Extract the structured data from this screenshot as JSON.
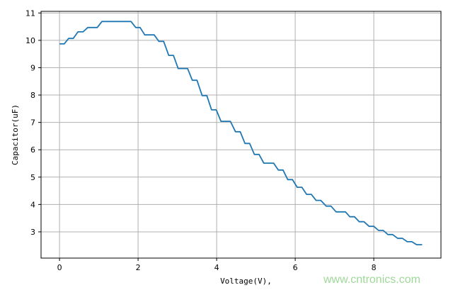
{
  "chart_data": {
    "type": "line",
    "title": "",
    "xlabel": "Voltage(V),",
    "ylabel": "Capacitor(uF)",
    "xlim": [
      -0.47,
      9.71
    ],
    "ylim": [
      2.04,
      11.06
    ],
    "xticks": [
      0,
      2,
      4,
      6,
      8
    ],
    "yticks": [
      3,
      4,
      5,
      6,
      7,
      8,
      9,
      10,
      11
    ],
    "grid": true,
    "line_color": "#1f77b4",
    "grid_color": "#b0b0b0",
    "series": [
      {
        "x": [
          0,
          0.12,
          0.23,
          0.35,
          0.47,
          0.6,
          0.72,
          0.96,
          1.08,
          1.82,
          1.94,
          2.05,
          2.17,
          2.41,
          2.53,
          2.65,
          2.78,
          2.9,
          3.02,
          3.26,
          3.38,
          3.5,
          3.63,
          3.75,
          3.87,
          3.99,
          4.11,
          4.35,
          4.48,
          4.6,
          4.72,
          4.84,
          4.96,
          5.08,
          5.2,
          5.45,
          5.57,
          5.69,
          5.81,
          5.93,
          6.05,
          6.17,
          6.29,
          6.41,
          6.53,
          6.65,
          6.79,
          6.91,
          7.04,
          7.28,
          7.39,
          7.51,
          7.63,
          7.75,
          7.88,
          8.0,
          8.12,
          8.24,
          8.36,
          8.48,
          8.61,
          8.73,
          8.85,
          8.97,
          9.09,
          9.23
        ],
        "y": [
          9.87,
          9.87,
          10.07,
          10.07,
          10.31,
          10.31,
          10.47,
          10.47,
          10.69,
          10.69,
          10.47,
          10.47,
          10.2,
          10.2,
          9.96,
          9.96,
          9.45,
          9.45,
          8.97,
          8.97,
          8.54,
          8.54,
          7.98,
          7.98,
          7.46,
          7.46,
          7.04,
          7.04,
          6.66,
          6.66,
          6.23,
          6.23,
          5.83,
          5.83,
          5.51,
          5.51,
          5.26,
          5.26,
          4.91,
          4.91,
          4.63,
          4.63,
          4.37,
          4.37,
          4.15,
          4.15,
          3.94,
          3.94,
          3.73,
          3.73,
          3.55,
          3.55,
          3.37,
          3.37,
          3.2,
          3.2,
          3.05,
          3.05,
          2.9,
          2.9,
          2.76,
          2.76,
          2.64,
          2.64,
          2.53,
          2.53
        ]
      }
    ]
  },
  "watermark": "www.cntronics.com"
}
